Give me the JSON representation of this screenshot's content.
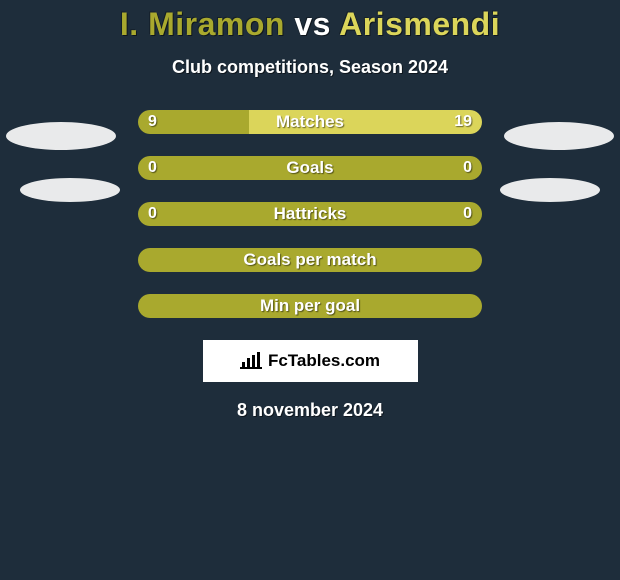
{
  "title": {
    "player1": "I. Miramon",
    "vs": "vs",
    "player2": "Arismendi",
    "color1": "#a9a92e",
    "color2": "#dbd55a",
    "vs_color": "#ffffff",
    "fontsize": 32
  },
  "subtitle": "Club competitions, Season 2024",
  "background_color": "#1e2d3b",
  "bar_colors": {
    "left": "#a9a92e",
    "right": "#dbd55a"
  },
  "stats": [
    {
      "label": "Matches",
      "left_val": "9",
      "right_val": "19",
      "left_num": 9,
      "right_num": 19,
      "show_values": true
    },
    {
      "label": "Goals",
      "left_val": "0",
      "right_val": "0",
      "left_num": 0,
      "right_num": 0,
      "show_values": true
    },
    {
      "label": "Hattricks",
      "left_val": "0",
      "right_val": "0",
      "left_num": 0,
      "right_num": 0,
      "show_values": true
    },
    {
      "label": "Goals per match",
      "left_val": "",
      "right_val": "",
      "left_num": 0,
      "right_num": 0,
      "show_values": false
    },
    {
      "label": "Min per goal",
      "left_val": "",
      "right_val": "",
      "left_num": 0,
      "right_num": 0,
      "show_values": false
    }
  ],
  "side_ellipses": {
    "left_fill": [
      "#f4f4f4",
      "#f4f4f4"
    ],
    "right_fill": [
      "#f4f4f4",
      "#f4f4f4"
    ]
  },
  "attribution": {
    "text": "FcTables.com",
    "bg": "#ffffff",
    "text_color": "#000000"
  },
  "date": "8 november 2024"
}
